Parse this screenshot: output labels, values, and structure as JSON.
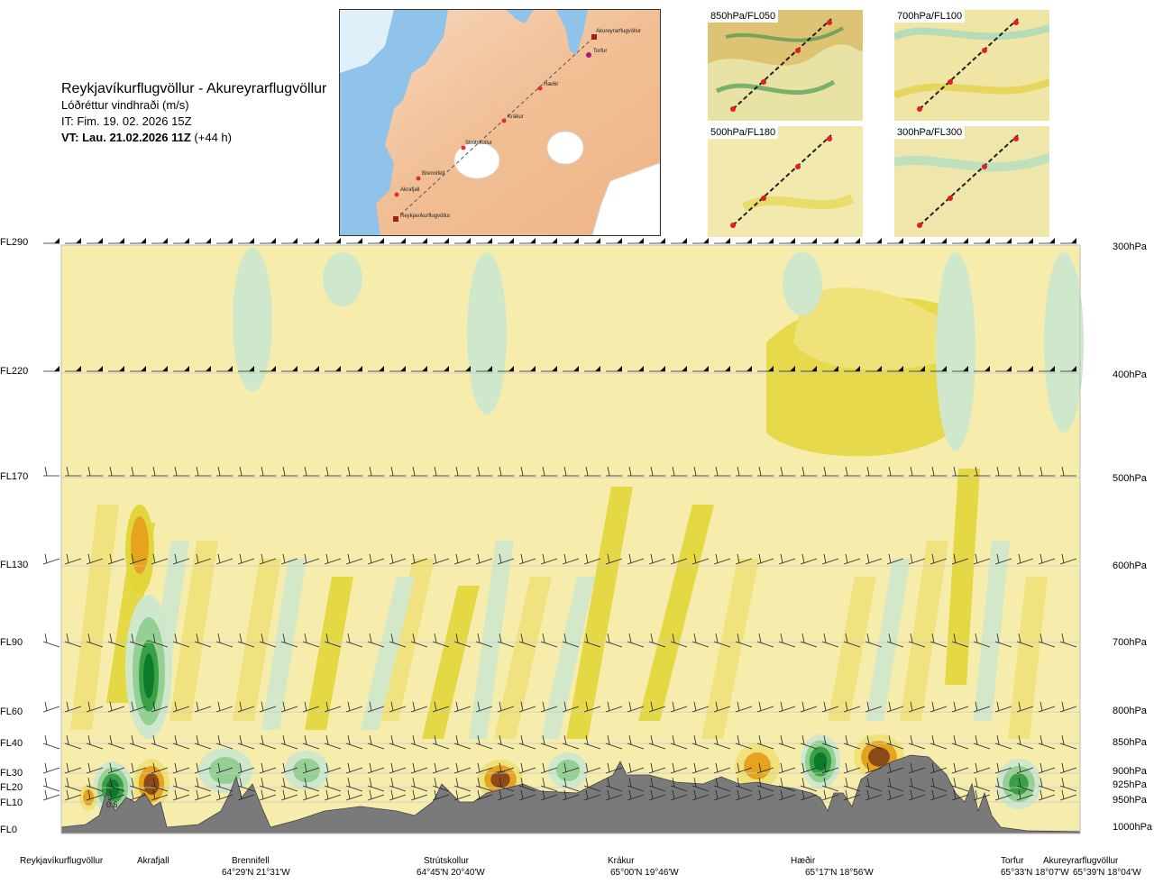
{
  "header": {
    "route": "Reykjavíkurflugvöllur - Akureyrarflugvöllur",
    "variable": "Lóðréttur vindhraði (m/s)",
    "it": "IT: Fim. 19. 02. 2026 15Z",
    "vt_bold": "VT: Lau. 21.02.2026 11Z",
    "vt_offset": " (+44 h)"
  },
  "map": {
    "stations": [
      "Akureyrarflugvöllur",
      "Torfur",
      "Hæðir",
      "Krákur",
      "Strútskollur",
      "Brennifell",
      "Akrafjall",
      "Reykjavíkurflugvöllur"
    ]
  },
  "insets": [
    {
      "label": "850hPa/FL050"
    },
    {
      "label": "700hPa/FL100"
    },
    {
      "label": "500hPa/FL180"
    },
    {
      "label": "300hPa/FL300"
    }
  ],
  "chart_data": {
    "type": "heatmap",
    "title": "Lóðréttur vindhraði (m/s)",
    "y_left_ticks": [
      "FL290",
      "FL220",
      "FL170",
      "FL130",
      "FL90",
      "FL60",
      "FL40",
      "FL30",
      "FL20",
      "FL10",
      "FL0"
    ],
    "y_right_ticks": [
      "300hPa",
      "400hPa",
      "500hPa",
      "600hPa",
      "700hPa",
      "800hPa",
      "850hPa",
      "900hPa",
      "925hPa",
      "950hPa",
      "1000hPa"
    ],
    "locations": [
      {
        "name": "Reykjavíkurflugvöllur",
        "coord": ""
      },
      {
        "name": "Akrafjall",
        "coord": ""
      },
      {
        "name": "Brennifell",
        "coord": "64°29'N 21°31'W"
      },
      {
        "name": "Strútskollur",
        "coord": "64°45'N 20°40'W"
      },
      {
        "name": "Krákur",
        "coord": "65°00'N 19°46'W"
      },
      {
        "name": "Hæðir",
        "coord": "65°17'N 18°56'W"
      },
      {
        "name": "Torfur",
        "coord": "65°33'N 18°07'W"
      },
      {
        "name": "Akureyrarflugvöllur",
        "coord": "65°39'N 18°04'W"
      }
    ],
    "annotations": [
      "0.6"
    ],
    "colors": {
      "background": "#f6ecac",
      "up_weak": "#efe27a",
      "up_mid": "#e3d63a",
      "up_strong": "#e6a41e",
      "up_max": "#8c4a18",
      "down_weak": "#cfe8cc",
      "down_mid": "#94cf93",
      "down_strong": "#3aa046",
      "down_max": "#0b7a2a",
      "terrain": "#7a7a7a"
    }
  }
}
